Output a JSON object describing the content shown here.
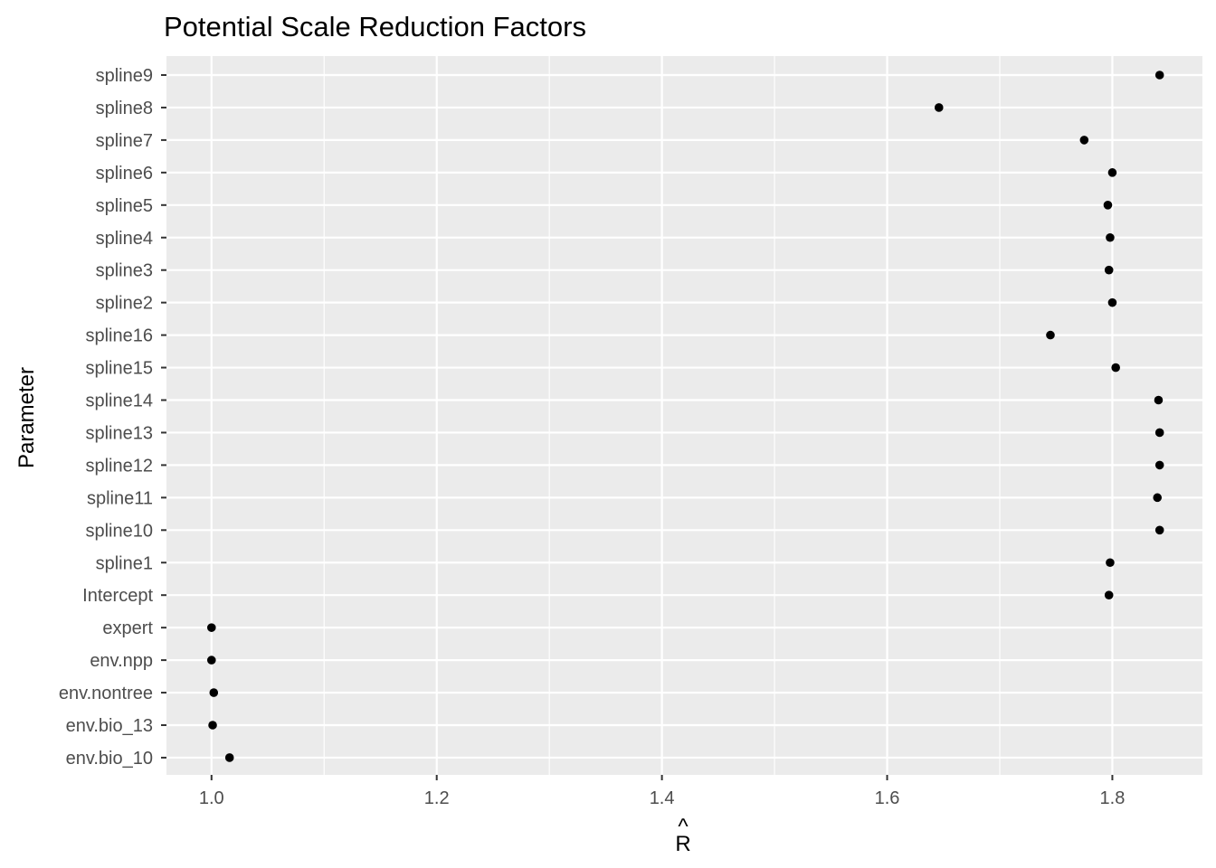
{
  "chart_data": {
    "type": "scatter",
    "title": "Potential Scale Reduction Factors",
    "xlabel": "R",
    "xlabel_accent": "^",
    "ylabel": "Parameter",
    "xlim": [
      0.96,
      1.88
    ],
    "xticks": [
      1.0,
      1.2,
      1.4,
      1.6,
      1.8
    ],
    "xtick_labels": [
      "1.0",
      "1.2",
      "1.4",
      "1.6",
      "1.8"
    ],
    "grid": true,
    "point_color": "#000000",
    "panel_color": "#ebebeb",
    "grid_color": "#ffffff",
    "categories": [
      "spline9",
      "spline8",
      "spline7",
      "spline6",
      "spline5",
      "spline4",
      "spline3",
      "spline2",
      "spline16",
      "spline15",
      "spline14",
      "spline13",
      "spline12",
      "spline11",
      "spline10",
      "spline1",
      "Intercept",
      "expert",
      "env.npp",
      "env.nontree",
      "env.bio_13",
      "env.bio_10"
    ],
    "values": [
      1.842,
      1.646,
      1.775,
      1.8,
      1.796,
      1.798,
      1.797,
      1.8,
      1.745,
      1.803,
      1.841,
      1.842,
      1.842,
      1.84,
      1.842,
      1.798,
      1.797,
      1.0,
      1.0,
      1.002,
      1.001,
      1.016
    ]
  }
}
